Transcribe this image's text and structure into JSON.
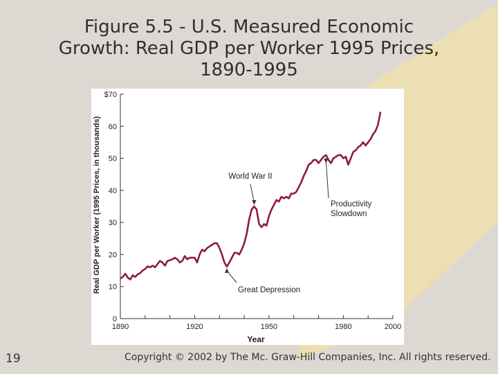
{
  "slide": {
    "title_lines": [
      "Figure 5.5 - U.S. Measured Economic",
      "Growth: Real GDP per Worker 1995 Prices,",
      "1890-1995"
    ],
    "number": "19",
    "copyright": "Copyright © 2002 by The Mc. Graw-Hill Companies, Inc.  All rights reserved."
  },
  "colors": {
    "background": "#ddd8d2",
    "accent": "#ecdfb4",
    "line": "#8b1c3c",
    "plot_bg": "#ffffff"
  },
  "chart_data": {
    "type": "line",
    "title": "",
    "xlabel": "Year",
    "ylabel": "Real GDP per Worker (1995 Prices, in thousands)",
    "xlim": [
      1890,
      2000
    ],
    "ylim": [
      0,
      70
    ],
    "x_ticks": [
      {
        "value": 1890,
        "label": "1890"
      },
      {
        "value": 1920,
        "label": "1920"
      },
      {
        "value": 1950,
        "label": "1950"
      },
      {
        "value": 1980,
        "label": "1980"
      },
      {
        "value": 2000,
        "label": "2000"
      }
    ],
    "y_ticks": [
      {
        "value": 0,
        "label": "0"
      },
      {
        "value": 10,
        "label": "10"
      },
      {
        "value": 20,
        "label": "20"
      },
      {
        "value": 30,
        "label": "30"
      },
      {
        "value": 40,
        "label": "40"
      },
      {
        "value": 50,
        "label": "50"
      },
      {
        "value": 60,
        "label": "60"
      },
      {
        "value": 70,
        "label": "$70"
      }
    ],
    "grid": false,
    "series": [
      {
        "name": "Real GDP per Worker",
        "x": [
          1890,
          1891,
          1892,
          1893,
          1894,
          1895,
          1896,
          1897,
          1898,
          1899,
          1900,
          1901,
          1902,
          1903,
          1904,
          1905,
          1906,
          1907,
          1908,
          1909,
          1910,
          1911,
          1912,
          1913,
          1914,
          1915,
          1916,
          1917,
          1918,
          1919,
          1920,
          1921,
          1922,
          1923,
          1924,
          1925,
          1926,
          1927,
          1928,
          1929,
          1930,
          1931,
          1932,
          1933,
          1934,
          1935,
          1936,
          1937,
          1938,
          1939,
          1940,
          1941,
          1942,
          1943,
          1944,
          1945,
          1946,
          1947,
          1948,
          1949,
          1950,
          1951,
          1952,
          1953,
          1954,
          1955,
          1956,
          1957,
          1958,
          1959,
          1960,
          1961,
          1962,
          1963,
          1964,
          1965,
          1966,
          1967,
          1968,
          1969,
          1970,
          1971,
          1972,
          1973,
          1974,
          1975,
          1976,
          1977,
          1978,
          1979,
          1980,
          1981,
          1982,
          1983,
          1984,
          1985,
          1986,
          1987,
          1988,
          1989,
          1990,
          1991,
          1992,
          1993,
          1994,
          1995
        ],
        "y": [
          12.5,
          13.0,
          14.0,
          12.8,
          12.2,
          13.5,
          13.0,
          13.8,
          14.2,
          15.0,
          15.5,
          16.3,
          16.0,
          16.5,
          16.0,
          17.0,
          18.0,
          17.5,
          16.5,
          18.0,
          18.2,
          18.5,
          19.0,
          18.5,
          17.5,
          18.0,
          19.5,
          18.5,
          19.0,
          19.0,
          19.0,
          17.5,
          20.0,
          21.5,
          21.0,
          22.0,
          22.5,
          23.0,
          23.5,
          23.5,
          22.0,
          20.0,
          17.5,
          16.2,
          17.5,
          19.0,
          20.5,
          20.5,
          20.0,
          21.5,
          23.5,
          26.5,
          31.0,
          34.0,
          35.0,
          34.0,
          29.5,
          28.5,
          29.5,
          29.0,
          32.0,
          34.0,
          35.5,
          37.0,
          36.5,
          38.0,
          37.5,
          38.0,
          37.5,
          39.0,
          39.0,
          39.5,
          41.0,
          42.5,
          44.5,
          46.0,
          48.0,
          48.5,
          49.5,
          49.5,
          48.5,
          49.5,
          50.5,
          51.0,
          49.5,
          48.5,
          50.0,
          50.5,
          51.0,
          51.0,
          50.0,
          50.5,
          48.0,
          50.0,
          52.0,
          52.5,
          53.5,
          54.0,
          55.0,
          54.0,
          55.0,
          56.0,
          57.5,
          58.5,
          60.5,
          64.5
        ]
      }
    ],
    "annotations": [
      {
        "label": "World War II",
        "x": 1944,
        "y": 35
      },
      {
        "label": "Productivity Slowdown",
        "x": 1973,
        "y": 48
      },
      {
        "label": "Great Depression",
        "x": 1933,
        "y": 16.2
      }
    ]
  }
}
